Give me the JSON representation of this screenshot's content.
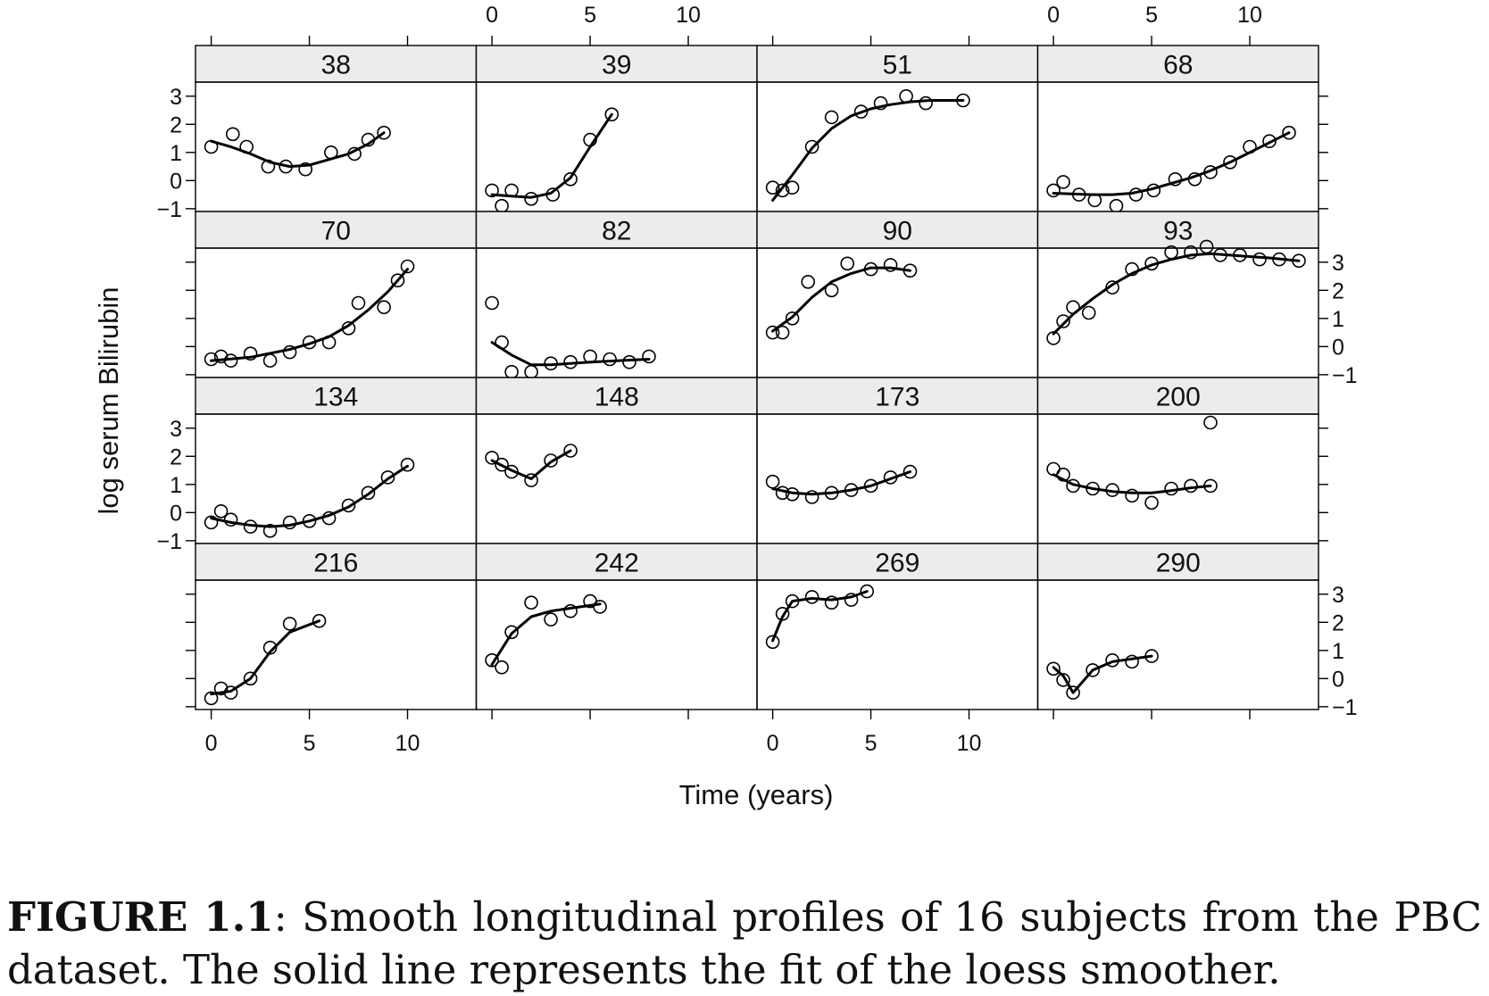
{
  "caption": {
    "label": "FIGURE 1.1",
    "text": ": Smooth longitudinal profiles of 16 subjects from the PBC dataset. The solid line represents the fit of the loess smoother."
  },
  "chart_data": {
    "type": "scatter",
    "layout": "trellis 4x4",
    "xlabel": "Time (years)",
    "ylabel": "log serum Bilirubin",
    "xlim": [
      -0.8,
      13.5
    ],
    "ylim": [
      -1.1,
      3.5
    ],
    "xticks": [
      0,
      5,
      10
    ],
    "yticks": [
      -1,
      0,
      1,
      2,
      3
    ],
    "colors": {
      "strip": "#ececec",
      "line": "#000000",
      "points": "#000000"
    },
    "panels": [
      {
        "id": "38",
        "points": [
          [
            0,
            1.2
          ],
          [
            1.1,
            1.65
          ],
          [
            1.8,
            1.2
          ],
          [
            2.9,
            0.5
          ],
          [
            3.8,
            0.5
          ],
          [
            4.8,
            0.4
          ],
          [
            6.1,
            1.0
          ],
          [
            7.3,
            0.95
          ],
          [
            8.0,
            1.45
          ],
          [
            8.8,
            1.7
          ]
        ],
        "smooth": [
          [
            0,
            1.4
          ],
          [
            1,
            1.2
          ],
          [
            2,
            0.95
          ],
          [
            3,
            0.65
          ],
          [
            4,
            0.5
          ],
          [
            5,
            0.55
          ],
          [
            6,
            0.75
          ],
          [
            7,
            0.95
          ],
          [
            8,
            1.3
          ],
          [
            8.8,
            1.7
          ]
        ]
      },
      {
        "id": "39",
        "points": [
          [
            0,
            -0.35
          ],
          [
            0.5,
            -0.9
          ],
          [
            1,
            -0.35
          ],
          [
            2,
            -0.65
          ],
          [
            3.1,
            -0.5
          ],
          [
            4,
            0.05
          ],
          [
            5,
            1.45
          ],
          [
            6.1,
            2.35
          ]
        ],
        "smooth": [
          [
            0,
            -0.5
          ],
          [
            1,
            -0.55
          ],
          [
            2,
            -0.6
          ],
          [
            3,
            -0.45
          ],
          [
            4,
            0.1
          ],
          [
            5,
            1.2
          ],
          [
            6.1,
            2.35
          ]
        ]
      },
      {
        "id": "51",
        "points": [
          [
            0,
            -0.25
          ],
          [
            0.5,
            -0.35
          ],
          [
            1,
            -0.25
          ],
          [
            2,
            1.2
          ],
          [
            3,
            2.25
          ],
          [
            4.5,
            2.45
          ],
          [
            5.5,
            2.75
          ],
          [
            6.8,
            3.0
          ],
          [
            7.8,
            2.75
          ],
          [
            9.7,
            2.85
          ]
        ],
        "smooth": [
          [
            0,
            -0.7
          ],
          [
            1,
            0.2
          ],
          [
            2,
            1.15
          ],
          [
            3,
            1.85
          ],
          [
            4,
            2.3
          ],
          [
            5,
            2.55
          ],
          [
            6,
            2.7
          ],
          [
            7,
            2.8
          ],
          [
            8,
            2.85
          ],
          [
            9.7,
            2.85
          ]
        ]
      },
      {
        "id": "68",
        "points": [
          [
            0,
            -0.35
          ],
          [
            0.5,
            -0.05
          ],
          [
            1.3,
            -0.5
          ],
          [
            2.1,
            -0.7
          ],
          [
            3.2,
            -0.9
          ],
          [
            4.2,
            -0.5
          ],
          [
            5.1,
            -0.35
          ],
          [
            6.2,
            0.05
          ],
          [
            7.2,
            0.05
          ],
          [
            8,
            0.3
          ],
          [
            9,
            0.65
          ],
          [
            10,
            1.2
          ],
          [
            11,
            1.4
          ],
          [
            12,
            1.7
          ]
        ],
        "smooth": [
          [
            0,
            -0.45
          ],
          [
            2,
            -0.5
          ],
          [
            3,
            -0.5
          ],
          [
            4,
            -0.45
          ],
          [
            5,
            -0.3
          ],
          [
            6,
            -0.1
          ],
          [
            7,
            0.1
          ],
          [
            8,
            0.35
          ],
          [
            9,
            0.65
          ],
          [
            10,
            1.0
          ],
          [
            11,
            1.35
          ],
          [
            12,
            1.7
          ]
        ]
      },
      {
        "id": "70",
        "points": [
          [
            0,
            -0.45
          ],
          [
            0.5,
            -0.35
          ],
          [
            1,
            -0.5
          ],
          [
            2,
            -0.25
          ],
          [
            3,
            -0.5
          ],
          [
            4,
            -0.2
          ],
          [
            5,
            0.15
          ],
          [
            6,
            0.15
          ],
          [
            7,
            0.65
          ],
          [
            7.5,
            1.55
          ],
          [
            8.8,
            1.4
          ],
          [
            9.5,
            2.35
          ],
          [
            10,
            2.85
          ]
        ],
        "smooth": [
          [
            0,
            -0.5
          ],
          [
            2,
            -0.38
          ],
          [
            4,
            -0.1
          ],
          [
            5,
            0.1
          ],
          [
            6,
            0.35
          ],
          [
            7,
            0.75
          ],
          [
            8,
            1.3
          ],
          [
            9,
            1.95
          ],
          [
            10,
            2.75
          ]
        ]
      },
      {
        "id": "82",
        "points": [
          [
            0,
            1.55
          ],
          [
            0.5,
            0.15
          ],
          [
            1,
            -0.9
          ],
          [
            2,
            -0.9
          ],
          [
            3,
            -0.6
          ],
          [
            4,
            -0.55
          ],
          [
            5,
            -0.35
          ],
          [
            6,
            -0.45
          ],
          [
            7,
            -0.55
          ],
          [
            8,
            -0.35
          ]
        ],
        "smooth": [
          [
            0,
            0.15
          ],
          [
            1,
            -0.3
          ],
          [
            2,
            -0.65
          ],
          [
            3,
            -0.65
          ],
          [
            5,
            -0.55
          ],
          [
            7,
            -0.48
          ],
          [
            8,
            -0.45
          ]
        ]
      },
      {
        "id": "90",
        "points": [
          [
            0,
            0.5
          ],
          [
            0.5,
            0.5
          ],
          [
            1,
            1.0
          ],
          [
            1.8,
            2.3
          ],
          [
            3,
            2.0
          ],
          [
            3.8,
            2.95
          ],
          [
            5,
            2.75
          ],
          [
            6,
            2.9
          ],
          [
            7,
            2.7
          ]
        ],
        "smooth": [
          [
            0,
            0.55
          ],
          [
            1,
            1.05
          ],
          [
            2,
            1.75
          ],
          [
            3,
            2.3
          ],
          [
            4,
            2.6
          ],
          [
            5,
            2.8
          ],
          [
            6,
            2.8
          ],
          [
            7,
            2.7
          ]
        ]
      },
      {
        "id": "93",
        "points": [
          [
            0,
            0.3
          ],
          [
            0.5,
            0.9
          ],
          [
            1,
            1.4
          ],
          [
            1.8,
            1.2
          ],
          [
            3,
            2.1
          ],
          [
            4,
            2.75
          ],
          [
            5,
            2.95
          ],
          [
            6,
            3.35
          ],
          [
            7,
            3.35
          ],
          [
            7.8,
            3.55
          ],
          [
            8.5,
            3.25
          ],
          [
            9.5,
            3.25
          ],
          [
            10.5,
            3.1
          ],
          [
            11.5,
            3.1
          ],
          [
            12.5,
            3.05
          ]
        ],
        "smooth": [
          [
            0,
            0.45
          ],
          [
            1,
            1.15
          ],
          [
            2,
            1.7
          ],
          [
            3,
            2.2
          ],
          [
            4,
            2.6
          ],
          [
            5,
            2.9
          ],
          [
            6,
            3.1
          ],
          [
            7,
            3.25
          ],
          [
            8,
            3.3
          ],
          [
            9,
            3.25
          ],
          [
            10,
            3.2
          ],
          [
            11,
            3.15
          ],
          [
            12.5,
            3.05
          ]
        ]
      },
      {
        "id": "134",
        "points": [
          [
            0,
            -0.35
          ],
          [
            0.5,
            0.05
          ],
          [
            1,
            -0.25
          ],
          [
            2,
            -0.5
          ],
          [
            3,
            -0.65
          ],
          [
            4,
            -0.35
          ],
          [
            5,
            -0.3
          ],
          [
            6,
            -0.2
          ],
          [
            7,
            0.25
          ],
          [
            8,
            0.7
          ],
          [
            9,
            1.25
          ],
          [
            10,
            1.7
          ]
        ],
        "smooth": [
          [
            0,
            -0.2
          ],
          [
            1,
            -0.35
          ],
          [
            2,
            -0.45
          ],
          [
            3,
            -0.5
          ],
          [
            4,
            -0.45
          ],
          [
            5,
            -0.3
          ],
          [
            6,
            -0.1
          ],
          [
            7,
            0.2
          ],
          [
            8,
            0.65
          ],
          [
            9,
            1.2
          ],
          [
            10,
            1.65
          ]
        ]
      },
      {
        "id": "148",
        "points": [
          [
            0,
            1.95
          ],
          [
            0.5,
            1.7
          ],
          [
            1,
            1.45
          ],
          [
            2,
            1.15
          ],
          [
            3,
            1.85
          ],
          [
            4,
            2.2
          ]
        ],
        "smooth": [
          [
            0,
            1.85
          ],
          [
            1,
            1.5
          ],
          [
            2,
            1.2
          ],
          [
            3,
            1.8
          ],
          [
            4,
            2.2
          ]
        ]
      },
      {
        "id": "173",
        "points": [
          [
            0,
            1.1
          ],
          [
            0.5,
            0.7
          ],
          [
            1,
            0.65
          ],
          [
            2,
            0.55
          ],
          [
            3,
            0.7
          ],
          [
            4,
            0.8
          ],
          [
            5,
            0.95
          ],
          [
            6,
            1.25
          ],
          [
            7,
            1.45
          ]
        ],
        "smooth": [
          [
            0,
            0.85
          ],
          [
            1,
            0.7
          ],
          [
            2,
            0.65
          ],
          [
            3,
            0.7
          ],
          [
            4,
            0.8
          ],
          [
            5,
            0.95
          ],
          [
            6,
            1.2
          ],
          [
            7,
            1.45
          ]
        ]
      },
      {
        "id": "200",
        "points": [
          [
            0,
            1.55
          ],
          [
            0.5,
            1.35
          ],
          [
            1,
            0.95
          ],
          [
            2,
            0.85
          ],
          [
            3,
            0.8
          ],
          [
            4,
            0.6
          ],
          [
            5,
            0.35
          ],
          [
            6,
            0.85
          ],
          [
            7,
            0.95
          ],
          [
            8,
            0.95
          ],
          [
            8,
            3.2
          ]
        ],
        "smooth": [
          [
            0,
            1.35
          ],
          [
            1,
            1.0
          ],
          [
            2,
            0.85
          ],
          [
            3,
            0.75
          ],
          [
            4,
            0.7
          ],
          [
            5,
            0.7
          ],
          [
            6,
            0.78
          ],
          [
            7,
            0.88
          ],
          [
            8,
            0.95
          ]
        ]
      },
      {
        "id": "216",
        "points": [
          [
            0,
            -0.7
          ],
          [
            0.5,
            -0.35
          ],
          [
            1,
            -0.5
          ],
          [
            2,
            0.0
          ],
          [
            3,
            1.1
          ],
          [
            4,
            1.95
          ],
          [
            5.5,
            2.05
          ]
        ],
        "smooth": [
          [
            0,
            -0.55
          ],
          [
            1,
            -0.45
          ],
          [
            2,
            0.0
          ],
          [
            3,
            0.95
          ],
          [
            4,
            1.65
          ],
          [
            5.5,
            2.05
          ]
        ]
      },
      {
        "id": "242",
        "points": [
          [
            0,
            0.65
          ],
          [
            0.5,
            0.4
          ],
          [
            1,
            1.65
          ],
          [
            2,
            2.7
          ],
          [
            3,
            2.1
          ],
          [
            4,
            2.4
          ],
          [
            5,
            2.75
          ],
          [
            5.5,
            2.55
          ]
        ],
        "smooth": [
          [
            0,
            0.5
          ],
          [
            1,
            1.6
          ],
          [
            2,
            2.2
          ],
          [
            3,
            2.4
          ],
          [
            4,
            2.5
          ],
          [
            5,
            2.6
          ],
          [
            5.5,
            2.65
          ]
        ]
      },
      {
        "id": "269",
        "points": [
          [
            0,
            1.3
          ],
          [
            0.5,
            2.3
          ],
          [
            1,
            2.75
          ],
          [
            2,
            2.9
          ],
          [
            3,
            2.7
          ],
          [
            4,
            2.8
          ],
          [
            4.8,
            3.1
          ]
        ],
        "smooth": [
          [
            0,
            1.35
          ],
          [
            0.5,
            2.2
          ],
          [
            1,
            2.75
          ],
          [
            2,
            2.85
          ],
          [
            3,
            2.8
          ],
          [
            4,
            2.9
          ],
          [
            4.8,
            3.1
          ]
        ]
      },
      {
        "id": "290",
        "points": [
          [
            0,
            0.35
          ],
          [
            0.5,
            -0.05
          ],
          [
            1,
            -0.5
          ],
          [
            2,
            0.3
          ],
          [
            3,
            0.65
          ],
          [
            4,
            0.6
          ],
          [
            5,
            0.8
          ]
        ],
        "smooth": [
          [
            0,
            0.4
          ],
          [
            0.5,
            0.1
          ],
          [
            1,
            -0.5
          ],
          [
            2,
            0.3
          ],
          [
            3,
            0.6
          ],
          [
            4,
            0.7
          ],
          [
            5,
            0.8
          ]
        ]
      }
    ]
  }
}
